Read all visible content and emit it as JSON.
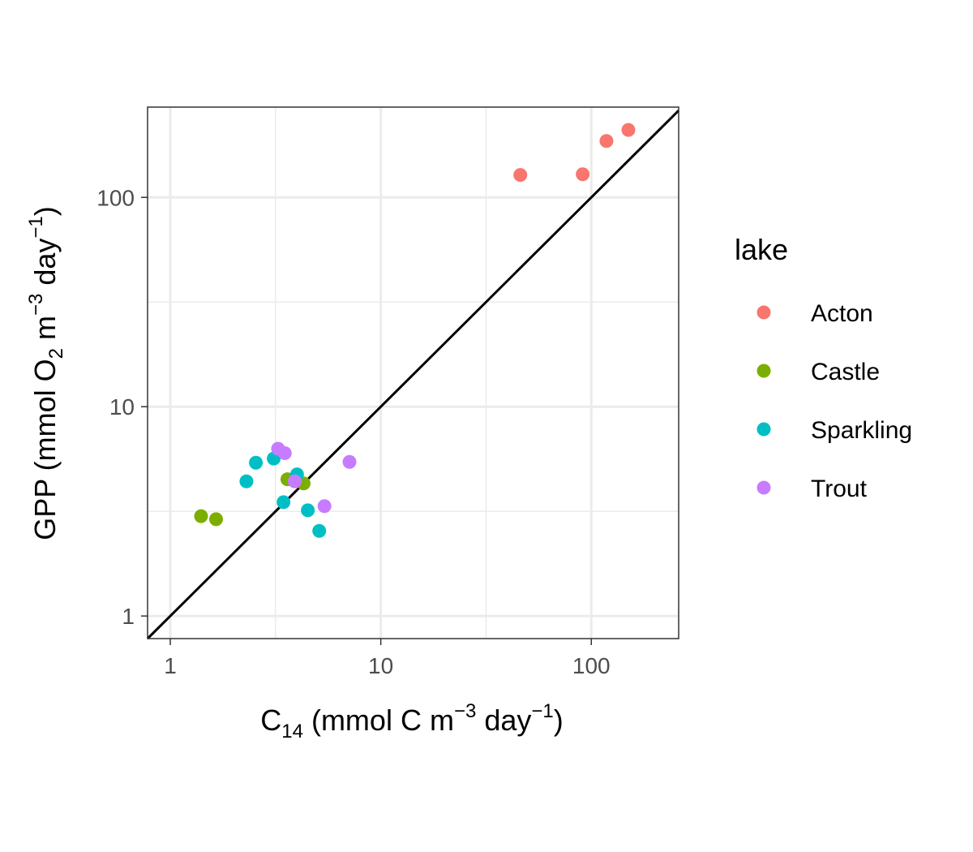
{
  "chart_data": {
    "type": "scatter",
    "x_scale": "log",
    "y_scale": "log",
    "xlim": [
      0.78,
      260
    ],
    "ylim": [
      0.78,
      270
    ],
    "x_ticks": [
      1,
      10,
      100
    ],
    "x_tick_labels": [
      "1",
      "10",
      "100"
    ],
    "y_ticks": [
      1,
      10,
      100
    ],
    "y_tick_labels": [
      "1",
      "10",
      "100"
    ],
    "xlabel": {
      "pre": "C",
      "sub": "14",
      "mid": " (mmol C m",
      "sup1": "−3",
      "mid2": " day",
      "sup2": "−1",
      "post": ")"
    },
    "ylabel": {
      "pre": "GPP (mmol O",
      "sub": "2",
      "mid": " m",
      "sup1": "−3",
      "mid2": " day",
      "sup2": "−1",
      "post": ")"
    },
    "grid": true,
    "reference_line": "y = x",
    "legend": {
      "title": "lake",
      "placement": "right",
      "entries": [
        {
          "name": "Acton",
          "color": "#F8766D"
        },
        {
          "name": "Castle",
          "color": "#7CAE00"
        },
        {
          "name": "Sparkling",
          "color": "#00BFC4"
        },
        {
          "name": "Trout",
          "color": "#C77CFF"
        }
      ]
    },
    "series": [
      {
        "name": "Acton",
        "color": "#F8766D",
        "points": [
          [
            46,
            128
          ],
          [
            91,
            129
          ],
          [
            118,
            186
          ],
          [
            150,
            210
          ]
        ]
      },
      {
        "name": "Castle",
        "color": "#7CAE00",
        "points": [
          [
            1.4,
            3.0
          ],
          [
            1.65,
            2.9
          ],
          [
            3.6,
            4.5
          ],
          [
            4.3,
            4.3
          ]
        ]
      },
      {
        "name": "Sparkling",
        "color": "#00BFC4",
        "points": [
          [
            2.3,
            4.4
          ],
          [
            2.55,
            5.4
          ],
          [
            3.1,
            5.65
          ],
          [
            4.0,
            4.75
          ],
          [
            3.45,
            3.5
          ],
          [
            4.5,
            3.2
          ],
          [
            5.1,
            2.55
          ]
        ]
      },
      {
        "name": "Trout",
        "color": "#C77CFF",
        "points": [
          [
            3.25,
            6.3
          ],
          [
            3.5,
            6.0
          ],
          [
            3.9,
            4.4
          ],
          [
            5.4,
            3.35
          ],
          [
            7.1,
            5.45
          ]
        ]
      }
    ]
  }
}
